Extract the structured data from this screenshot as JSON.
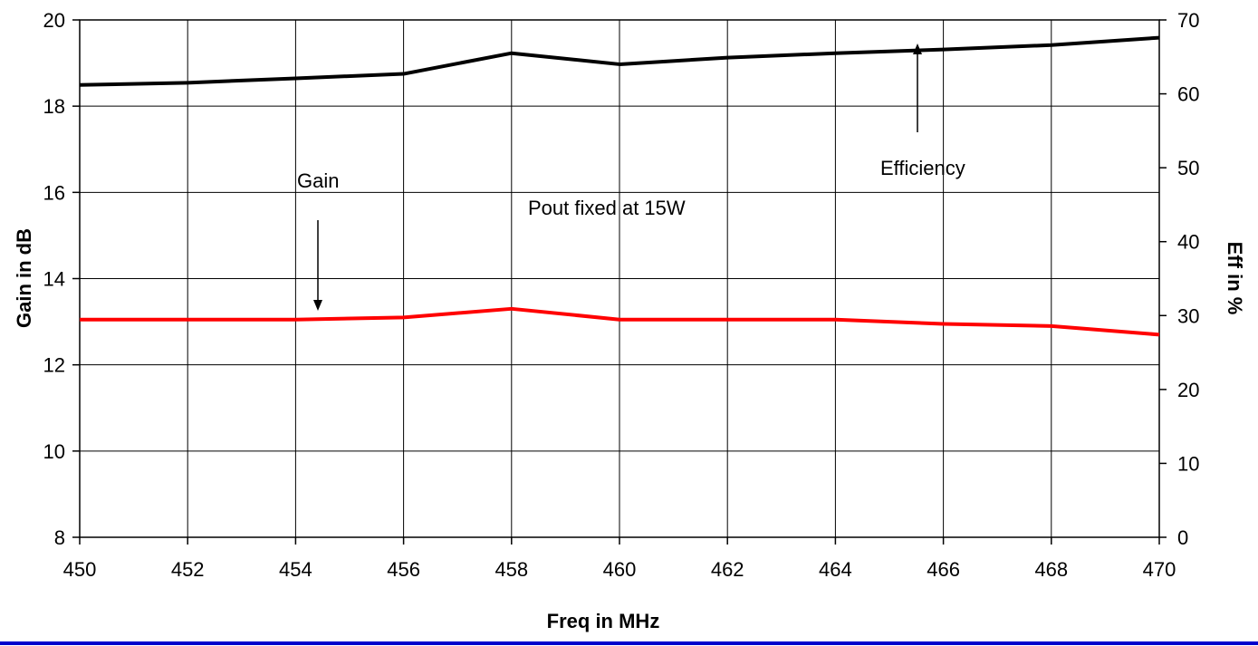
{
  "chart_data": {
    "type": "line",
    "x": [
      450,
      452,
      454,
      456,
      458,
      460,
      462,
      464,
      466,
      468,
      470
    ],
    "series": [
      {
        "name": "Gain",
        "axis": "left",
        "color": "#ff0000",
        "values": [
          13.05,
          13.05,
          13.05,
          13.1,
          13.3,
          13.05,
          13.05,
          13.05,
          12.95,
          12.9,
          12.7
        ]
      },
      {
        "name": "Efficiency",
        "axis": "right",
        "color": "#000000",
        "values": [
          61.2,
          61.5,
          62.1,
          62.7,
          65.5,
          64.0,
          64.9,
          65.5,
          66.0,
          66.6,
          67.6
        ]
      }
    ],
    "xlabel": "Freq in MHz",
    "ylabel_left": "Gain in dB",
    "ylabel_right": "Eff in %",
    "xlim": [
      450,
      470
    ],
    "ylim_left": [
      8,
      20
    ],
    "ylim_right": [
      0,
      70
    ],
    "x_ticks": [
      "450",
      "452",
      "454",
      "456",
      "458",
      "460",
      "462",
      "464",
      "466",
      "468",
      "470"
    ],
    "y_ticks_left": [
      "8",
      "10",
      "12",
      "14",
      "16",
      "18",
      "20"
    ],
    "y_ticks_right": [
      "0",
      "10",
      "20",
      "30",
      "40",
      "50",
      "60",
      "70"
    ],
    "grid": true,
    "annotations": {
      "gain_label": "Gain",
      "efficiency_label": "Efficiency",
      "note": "Pout fixed at 15W"
    },
    "footer_line_color": "#0000cc"
  }
}
